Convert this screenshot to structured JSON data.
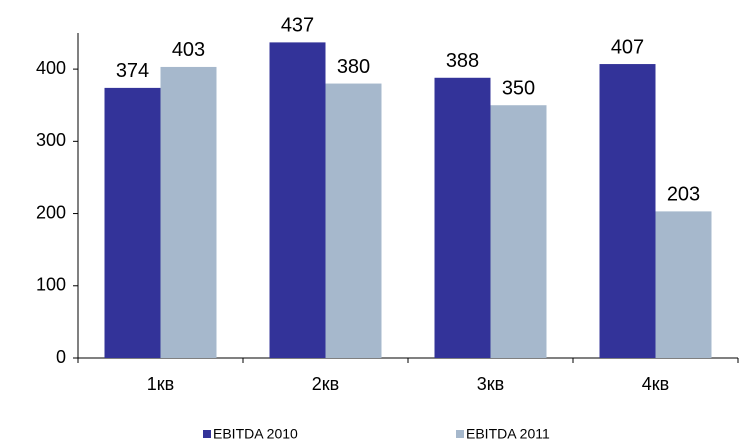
{
  "chart_data": {
    "type": "bar",
    "categories": [
      "1кв",
      "2кв",
      "3кв",
      "4кв"
    ],
    "series": [
      {
        "name": "EBITDA 2010",
        "color": "#333399",
        "values": [
          374,
          437,
          388,
          407
        ]
      },
      {
        "name": "EBITDA 2011",
        "color": "#a6b8cc",
        "values": [
          403,
          380,
          350,
          203
        ]
      }
    ],
    "ylim": [
      0,
      450
    ],
    "yticks": [
      0,
      100,
      200,
      300,
      400
    ],
    "grid": false,
    "legend": "bottom"
  }
}
